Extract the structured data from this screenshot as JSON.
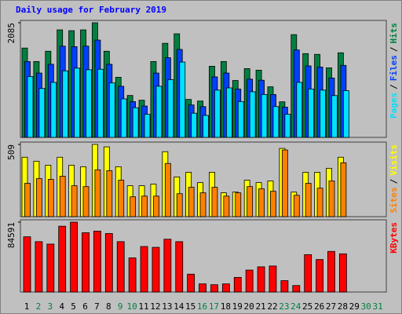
{
  "chart_data": {
    "type": "bar",
    "title": "Daily usage for February 2019",
    "categories": [
      "1",
      "2",
      "3",
      "4",
      "5",
      "6",
      "7",
      "8",
      "9",
      "10",
      "11",
      "12",
      "13",
      "14",
      "15",
      "16",
      "17",
      "18",
      "19",
      "20",
      "21",
      "22",
      "23",
      "24",
      "25",
      "26",
      "27",
      "28",
      "29",
      "30",
      "31"
    ],
    "category_colors": [
      "#000000",
      "#008040",
      "#008040",
      "#000000",
      "#000000",
      "#000000",
      "#000000",
      "#000000",
      "#008040",
      "#008040",
      "#000000",
      "#000000",
      "#000000",
      "#000000",
      "#000000",
      "#008040",
      "#008040",
      "#000000",
      "#000000",
      "#000000",
      "#000000",
      "#000000",
      "#008040",
      "#008040",
      "#000000",
      "#000000",
      "#000000",
      "#000000",
      "#000000",
      "#008040",
      "#008040"
    ],
    "legend_separator": "/",
    "panels": [
      {
        "ylim": [
          0,
          2085
        ],
        "yticks": [
          2085
        ],
        "series": [
          {
            "name": "Hits",
            "color": "#008040",
            "values": [
              1625,
              1380,
              1567,
              1956,
              1941,
              1956,
              2085,
              1567,
              1093,
              762,
              676,
              1380,
              1711,
              1884,
              690,
              661,
              1294,
              1380,
              1035,
              1251,
              1222,
              920,
              647,
              1869,
              1524,
              1510,
              1265,
              1539,
              null,
              null,
              null
            ]
          },
          {
            "name": "Files",
            "color": "#0040FF",
            "values": [
              1380,
              1170,
              1330,
              1660,
              1650,
              1660,
              1770,
              1330,
              930,
              650,
              570,
              1170,
              1450,
              1600,
              590,
              560,
              1100,
              1170,
              880,
              1060,
              1040,
              780,
              550,
              1590,
              1300,
              1280,
              1080,
              1310,
              null,
              null,
              null
            ]
          },
          {
            "name": "Pages",
            "color": "#00E0FF",
            "values": [
              1107,
              890,
              1000,
              1210,
              1260,
              1230,
              1240,
              990,
              700,
              540,
              420,
              930,
              1050,
              1370,
              440,
              400,
              860,
              900,
              650,
              830,
              780,
              560,
              420,
              1000,
              880,
              860,
              760,
              850,
              null,
              null,
              null
            ]
          }
        ]
      },
      {
        "ylim": [
          0,
          509
        ],
        "yticks": [
          509
        ],
        "series": [
          {
            "name": "Visits",
            "color": "#FFFF00",
            "values": [
              419,
              391,
              363,
              419,
              363,
              352,
              509,
              492,
              352,
              218,
              218,
              229,
              458,
              280,
              313,
              240,
              313,
              168,
              173,
              257,
              240,
              252,
              481,
              173,
              313,
              313,
              341,
              419,
              null,
              null,
              null
            ]
          },
          {
            "name": "Sites",
            "color": "#FF8000",
            "values": [
              235,
              268,
              263,
              285,
              218,
              212,
              330,
              324,
              257,
              140,
              145,
              145,
              375,
              162,
              207,
              168,
              207,
              145,
              168,
              212,
              196,
              179,
              470,
              151,
              235,
              201,
              252,
              380,
              null,
              null,
              null
            ]
          }
        ]
      },
      {
        "ylim": [
          0,
          84591
        ],
        "yticks": [
          84591
        ],
        "series": [
          {
            "name": "KBytes",
            "color": "#FF0000",
            "values": [
              66885,
              60983,
              58032,
              79672,
              84591,
              71803,
              73770,
              70819,
              60983,
              41311,
              55082,
              54098,
              63934,
              60983,
              21639,
              9836,
              8852,
              9836,
              17705,
              26557,
              30492,
              31475,
              13770,
              7869,
              45246,
              39344,
              49180,
              46229,
              null,
              null,
              null
            ]
          }
        ]
      }
    ]
  }
}
